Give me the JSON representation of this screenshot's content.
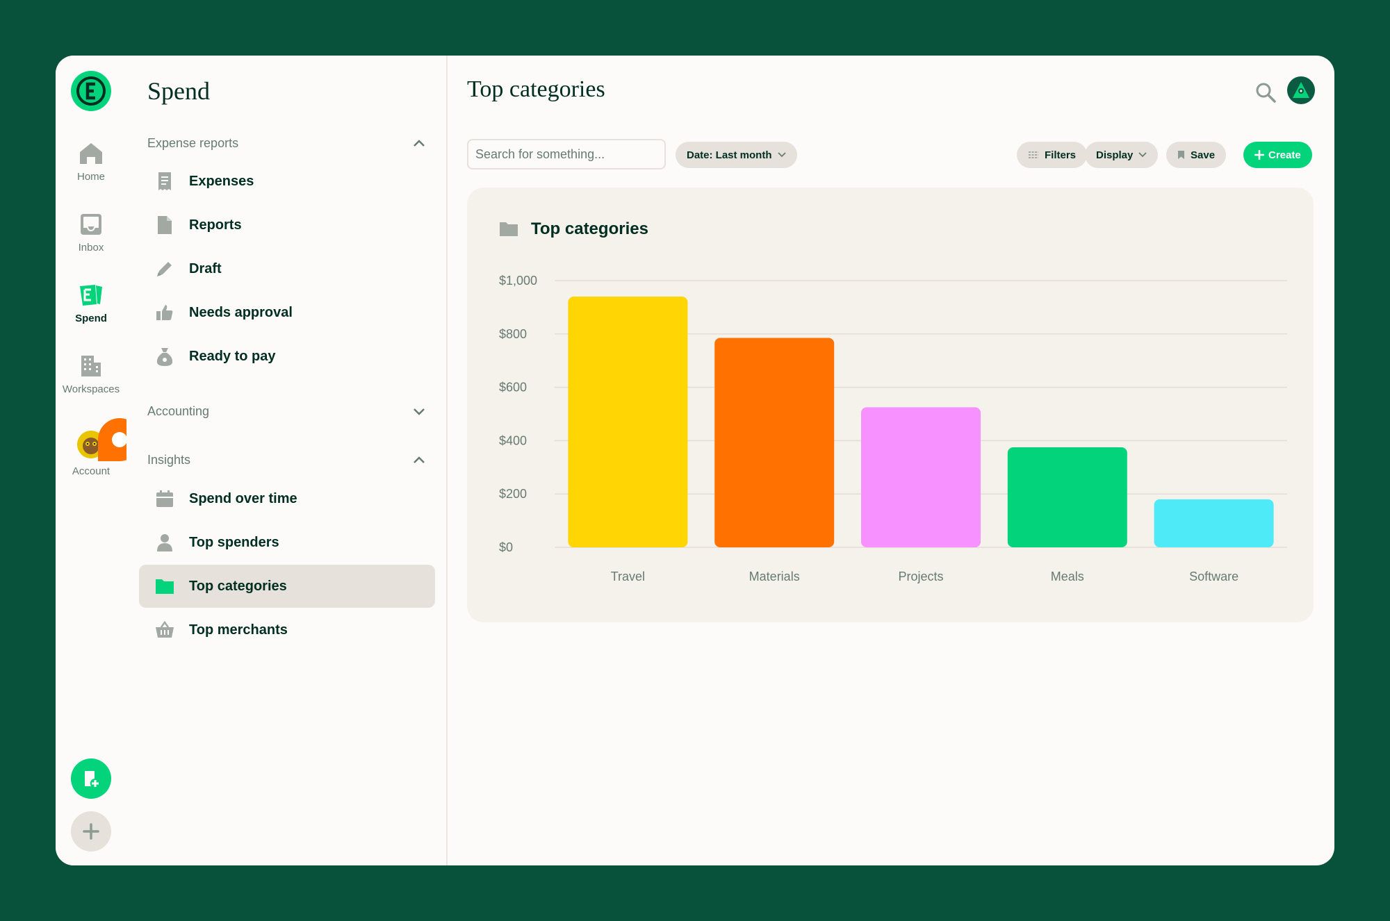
{
  "rail": {
    "items": [
      {
        "label": "Home",
        "icon": "home-icon"
      },
      {
        "label": "Inbox",
        "icon": "inbox-icon"
      },
      {
        "label": "Spend",
        "icon": "spend-icon"
      },
      {
        "label": "Workspaces",
        "icon": "building-icon"
      },
      {
        "label": "Account",
        "icon": "account-avatar"
      }
    ]
  },
  "sidebar": {
    "title": "Spend",
    "groups": {
      "expense_reports": "Expense reports",
      "accounting": "Accounting",
      "insights": "Insights"
    },
    "expense_items": [
      "Expenses",
      "Reports",
      "Draft",
      "Needs approval",
      "Ready to pay"
    ],
    "insight_items": [
      "Spend over time",
      "Top spenders",
      "Top categories",
      "Top merchants"
    ]
  },
  "main": {
    "title": "Top categories",
    "search_placeholder": "Search for something...",
    "date_filter": "Date: Last month",
    "filters_label": "Filters",
    "display_label": "Display",
    "save_label": "Save",
    "create_label": "Create"
  },
  "card": {
    "title": "Top categories"
  },
  "colors": {
    "background": "#08513a",
    "accent": "#03d47c",
    "text": "#002e22",
    "muted": "#667b71",
    "notification": "#ff7101"
  },
  "chart_data": {
    "type": "bar",
    "title": "Top categories",
    "categories": [
      "Travel",
      "Materials",
      "Projects",
      "Meals",
      "Software"
    ],
    "values": [
      940,
      785,
      525,
      375,
      180
    ],
    "colors": [
      "#ffd503",
      "#ff7101",
      "#f691ff",
      "#03d47c",
      "#4eeaf7"
    ],
    "ylim": [
      0,
      1000
    ],
    "yticks": [
      "$0",
      "$200",
      "$400",
      "$600",
      "$800",
      "$1,000"
    ],
    "ytick_values": [
      0,
      200,
      400,
      600,
      800,
      1000
    ],
    "grid": true,
    "xlabel": "",
    "ylabel": ""
  }
}
